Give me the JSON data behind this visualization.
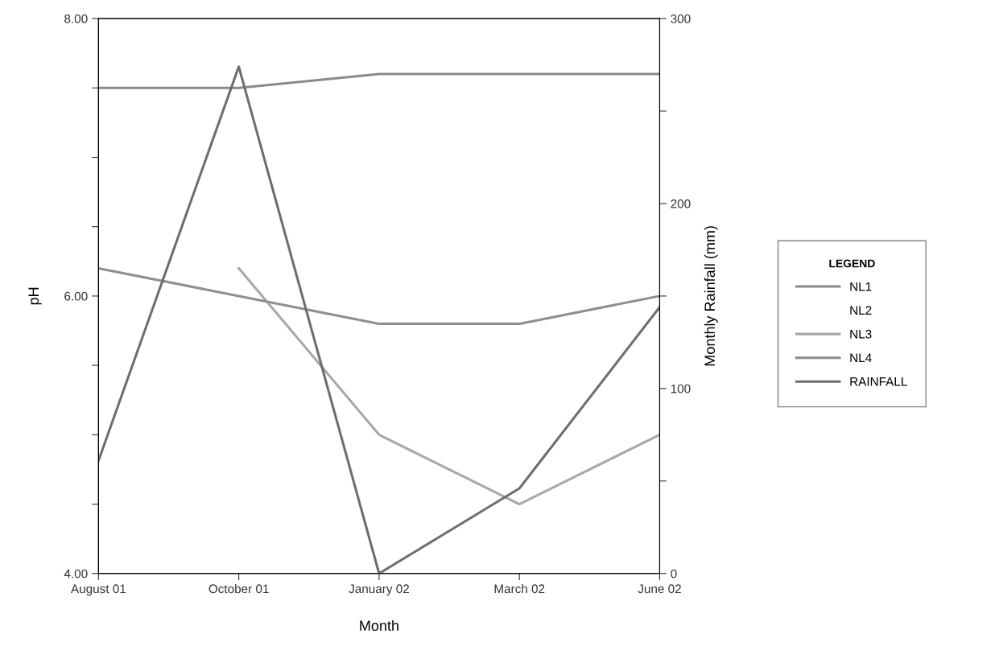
{
  "chart_data": {
    "type": "line",
    "xlabel": "Month",
    "ylabel": "pH",
    "y2label": "Monthly Rainfall (mm)",
    "legend_title": "LEGEND",
    "categories": [
      "August 01",
      "October 01",
      "January 02",
      "March 02",
      "June 02"
    ],
    "series": [
      {
        "name": "NL1",
        "color": "#8a8a8a",
        "values": [
          7.5,
          7.5,
          7.6,
          7.6,
          7.6
        ]
      },
      {
        "name": "NL2",
        "values": [
          null,
          null,
          null,
          null,
          null
        ]
      },
      {
        "name": "NL3",
        "color": "#a8a8a8",
        "values": [
          null,
          6.2,
          5.0,
          4.5,
          5.0
        ]
      },
      {
        "name": "NL4",
        "color": "#8f8f8f",
        "values": [
          6.2,
          6.0,
          5.8,
          5.8,
          6.0
        ]
      },
      {
        "name": "RAINFALL",
        "color": "#6e6e6e",
        "axis": "y2",
        "values": [
          61,
          274,
          0,
          46,
          144
        ]
      }
    ],
    "ylim": [
      4,
      8
    ],
    "yticks": [
      {
        "value": 4,
        "label": "4.00"
      },
      {
        "value": 4.5,
        "label": null
      },
      {
        "value": 5,
        "label": null
      },
      {
        "value": 5.5,
        "label": null
      },
      {
        "value": 6,
        "label": "6.00"
      },
      {
        "value": 6.5,
        "label": null
      },
      {
        "value": 7,
        "label": null
      },
      {
        "value": 7.5,
        "label": null
      },
      {
        "value": 8,
        "label": "8.00"
      }
    ],
    "y2lim": [
      0,
      300
    ],
    "y2ticks": [
      0,
      {
        "value": 50,
        "label": null
      },
      100,
      {
        "value": 150,
        "label": null
      },
      200,
      {
        "value": 250,
        "label": null
      },
      300
    ],
    "legend": "right",
    "grid": false,
    "marker": "none",
    "line_style": "solid"
  }
}
